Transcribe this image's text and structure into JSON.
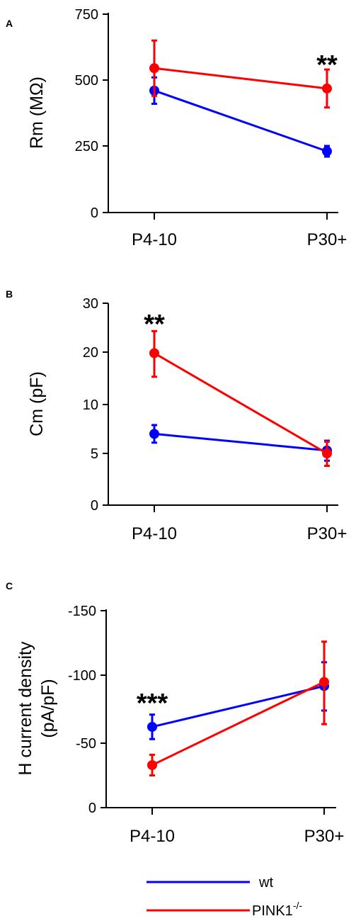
{
  "chart_data": [
    {
      "panel": "A",
      "type": "line",
      "ylabel": "Rm (MΩ)",
      "ylim": [
        0,
        750
      ],
      "yticks": [
        0,
        250,
        500,
        750
      ],
      "ytick_labels": [
        "0",
        "250",
        "500",
        "750"
      ],
      "categories": [
        "P4-10",
        "P30+"
      ],
      "series": [
        {
          "name": "wt",
          "color": "#0000ff",
          "values": [
            460,
            230
          ],
          "errors": [
            50,
            20
          ]
        },
        {
          "name": "PINK1 -/-",
          "color": "#ff0000",
          "values": [
            545,
            468
          ],
          "errors": [
            105,
            72
          ]
        }
      ],
      "annotations": [
        {
          "text": "**",
          "category": "P30+"
        }
      ]
    },
    {
      "panel": "B",
      "type": "line",
      "ylabel": "Cm (pF)",
      "ylim": [
        0,
        30
      ],
      "yticks": [
        0,
        5,
        10,
        20,
        30
      ],
      "ytick_labels": [
        "0",
        "5",
        "10",
        "20",
        "30"
      ],
      "categories": [
        "P4-10",
        "P30+"
      ],
      "series": [
        {
          "name": "wt",
          "color": "#0000ff",
          "values": [
            7,
            5.3
          ],
          "errors": [
            0.9,
            1.0
          ]
        },
        {
          "name": "PINK1 -/-",
          "color": "#ff0000",
          "values": [
            19.8,
            5.0
          ],
          "errors": [
            4.5,
            1.2
          ]
        }
      ],
      "annotations": [
        {
          "text": "**",
          "category": "P4-10"
        }
      ]
    },
    {
      "panel": "C",
      "type": "line",
      "ylabel": "H current density (pA/pF)",
      "ylim": [
        0,
        -150
      ],
      "yticks": [
        0,
        -50,
        -100,
        -150
      ],
      "ytick_labels": [
        "0",
        "-50",
        "-100",
        "-150"
      ],
      "categories": [
        "P4-10",
        "P30+"
      ],
      "series": [
        {
          "name": "wt",
          "color": "#0000ff",
          "values": [
            -62,
            -92
          ],
          "errors": [
            9,
            18
          ]
        },
        {
          "name": "PINK1 -/-",
          "color": "#ff0000",
          "values": [
            -33,
            -95
          ],
          "errors": [
            8,
            31
          ]
        }
      ],
      "annotations": [
        {
          "text": "***",
          "category": "P4-10"
        }
      ]
    }
  ],
  "legend": [
    {
      "label": "wt",
      "color": "#0000ff"
    },
    {
      "label": "PINK1",
      "superscript": "-/-",
      "color": "#ff0000"
    }
  ]
}
